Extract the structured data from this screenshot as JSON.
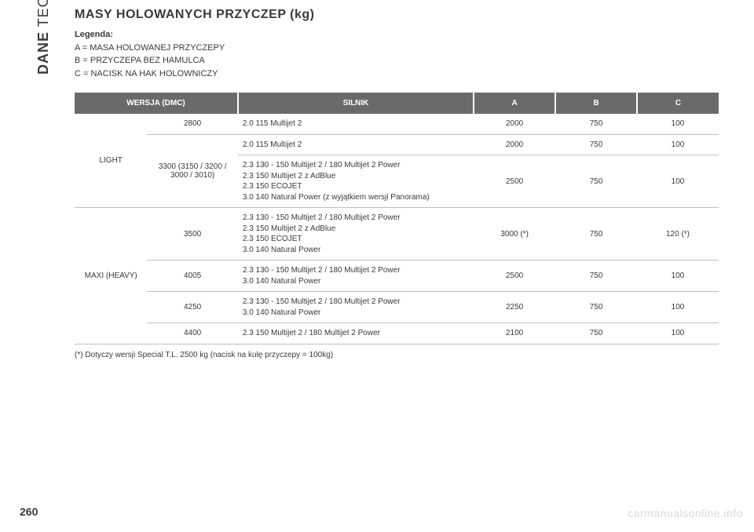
{
  "sidebar": {
    "bold": "DANE",
    "rest": " TECHNICZNE"
  },
  "title": "MASY HOLOWANYCH PRZYCZEP (kg)",
  "legend": {
    "heading": "Legenda:",
    "a": "A = MASA HOLOWANEJ PRZYCZEPY",
    "b": "B = PRZYCZEPA BEZ HAMULCA",
    "c": "C = NACISK NA HAK HOLOWNICZY"
  },
  "headers": {
    "version": "WERSJA (DMC)",
    "engine": "SILNIK",
    "a": "A",
    "b": "B",
    "c": "C"
  },
  "groups": {
    "light": "LIGHT",
    "heavy": "MAXI (HEAVY)"
  },
  "rows": [
    {
      "dmc": "2800",
      "engine": "2.0 115 Multijet 2",
      "a": "2000",
      "b": "750",
      "c": "100"
    },
    {
      "dmc_multi": "3300 (3150 / 3200 /\n3000 / 3010)",
      "engine": "2.0 115 Multijet 2",
      "a": "2000",
      "b": "750",
      "c": "100"
    },
    {
      "engine": "2.3 130 - 150 Multijet 2 / 180 Multijet 2 Power\n2.3 150 Multijet 2 z AdBlue\n2.3 150 ECOJET\n3.0 140 Natural Power (z wyjątkiem wersji Panorama)",
      "a": "2500",
      "b": "750",
      "c": "100"
    },
    {
      "dmc": "3500",
      "engine": "2.3 130 - 150 Multijet 2 / 180 Multijet 2 Power\n2.3 150 Multijet 2 z AdBlue\n2.3 150 ECOJET\n3.0 140 Natural Power",
      "a": "3000 (*)",
      "b": "750",
      "c": "120 (*)"
    },
    {
      "dmc": "4005",
      "engine": "2.3 130 - 150 Multijet 2 / 180 Multijet 2 Power\n3.0 140 Natural Power",
      "a": "2500",
      "b": "750",
      "c": "100"
    },
    {
      "dmc": "4250",
      "engine": "2.3 130 - 150 Multijet 2 / 180 Multijet 2 Power\n3.0 140 Natural Power",
      "a": "2250",
      "b": "750",
      "c": "100"
    },
    {
      "dmc": "4400",
      "engine": "2.3 150 Multijet 2 / 180 Multijet 2 Power",
      "a": "2100",
      "b": "750",
      "c": "100"
    }
  ],
  "footnote": "(*) Dotyczy wersji Special T.L. 2500 kg (nacisk na kulę przyczepy = 100kg)",
  "page": "260",
  "watermark": "carmanualsonline.info",
  "colors": {
    "header_bg": "#6a6a6a",
    "header_text": "#ffffff",
    "border": "#bfbfbf",
    "watermark": "#d9d9d9",
    "text": "#3a3a3a"
  }
}
